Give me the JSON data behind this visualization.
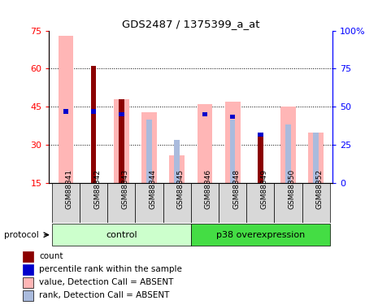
{
  "title": "GDS2487 / 1375399_a_at",
  "samples": [
    "GSM88341",
    "GSM88342",
    "GSM88343",
    "GSM88344",
    "GSM88345",
    "GSM88346",
    "GSM88348",
    "GSM88349",
    "GSM88350",
    "GSM88352"
  ],
  "value_absent": [
    73,
    null,
    48,
    43,
    26,
    46,
    47,
    null,
    45,
    35
  ],
  "count_red": [
    null,
    61,
    48,
    null,
    null,
    null,
    null,
    35,
    null,
    null
  ],
  "percentile_blue": [
    44,
    44,
    43,
    null,
    null,
    43,
    42,
    35,
    null,
    null
  ],
  "rank_absent": [
    null,
    null,
    null,
    40,
    32,
    null,
    40,
    null,
    38,
    35
  ],
  "ylim_left": [
    15,
    75
  ],
  "ylim_right": [
    0,
    100
  ],
  "yticks_left": [
    15,
    30,
    45,
    60,
    75
  ],
  "yticks_right": [
    0,
    25,
    50,
    75,
    100
  ],
  "control_color": "#ccffcc",
  "p38_color": "#44dd44",
  "bar_width": 0.55,
  "color_value_absent": "#FFB6B6",
  "color_count": "#8B0000",
  "color_percentile": "#0000CC",
  "color_rank_absent": "#AABBDD",
  "legend_items": [
    "count",
    "percentile rank within the sample",
    "value, Detection Call = ABSENT",
    "rank, Detection Call = ABSENT"
  ],
  "legend_colors": [
    "#8B0000",
    "#0000CC",
    "#FFB6B6",
    "#AABBDD"
  ]
}
